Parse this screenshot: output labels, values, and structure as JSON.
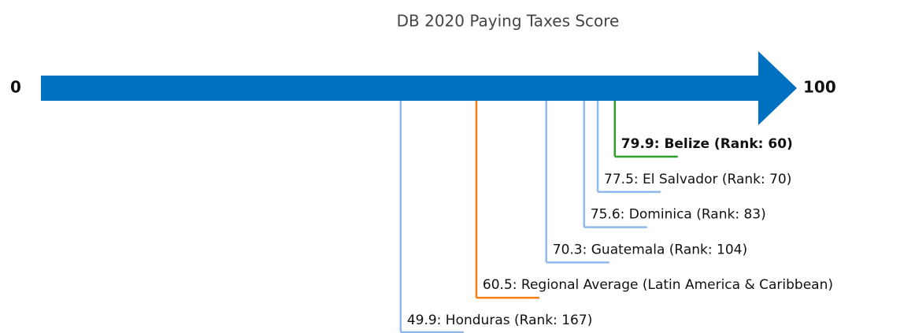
{
  "chart_data": {
    "type": "arrow-scale",
    "title": "DB 2020 Paying Taxes Score",
    "xlim": [
      0,
      100
    ],
    "xticks": [
      0,
      100
    ],
    "arrow_color": "#0070c0",
    "values": [
      79.9,
      77.5,
      75.6,
      70.3,
      60.5,
      49.9
    ],
    "value_labels": [
      "79.9: Belize (Rank: 60)",
      "77.5: El Salvador (Rank: 70)",
      "75.6: Dominica (Rank: 83)",
      "70.3: Guatemala (Rank: 104)",
      "60.5: Regional Average (Latin America & Caribbean)",
      "49.9: Honduras (Rank: 167)"
    ],
    "colors": [
      "#2ca02c",
      "#8fb8ec",
      "#8fb8ec",
      "#8fb8ec",
      "#ff7f0e",
      "#8fb8ec"
    ],
    "bold": [
      true,
      false,
      false,
      false,
      false,
      false
    ]
  }
}
